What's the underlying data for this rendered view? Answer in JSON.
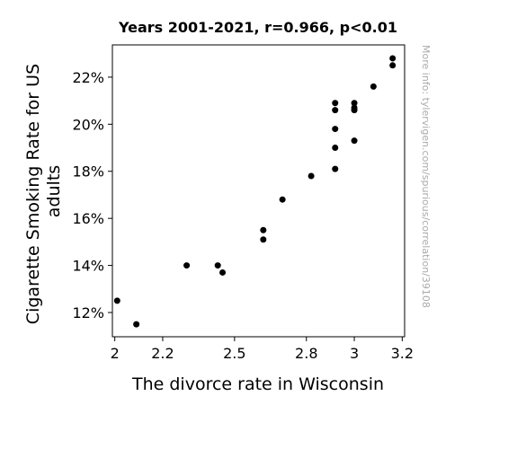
{
  "chart_data": {
    "type": "scatter",
    "title": "Years 2001-2021, r=0.966, p<0.01",
    "xlabel": "The divorce rate in Wisconsin",
    "ylabel_lines": [
      "Cigarette Smoking Rate for US",
      "adults"
    ],
    "xlim": [
      1.99,
      3.21
    ],
    "ylim": [
      10.97,
      23.37
    ],
    "x_ticks": [
      2,
      2.2,
      2.5,
      2.8,
      3,
      3.2
    ],
    "x_tick_labels": [
      "2",
      "2.2",
      "2.5",
      "2.8",
      "3",
      "3.2"
    ],
    "y_ticks": [
      12,
      14,
      16,
      18,
      20,
      22
    ],
    "y_tick_labels": [
      "12%",
      "14%",
      "16%",
      "18%",
      "20%",
      "22%"
    ],
    "grid": false,
    "marker_color": "#000000",
    "points": [
      {
        "x": 2.01,
        "y": 12.5
      },
      {
        "x": 2.09,
        "y": 11.5
      },
      {
        "x": 2.3,
        "y": 14.0
      },
      {
        "x": 2.43,
        "y": 14.0
      },
      {
        "x": 2.45,
        "y": 13.7
      },
      {
        "x": 2.62,
        "y": 15.5
      },
      {
        "x": 2.62,
        "y": 15.1
      },
      {
        "x": 2.7,
        "y": 16.8
      },
      {
        "x": 2.82,
        "y": 17.8
      },
      {
        "x": 2.92,
        "y": 18.1
      },
      {
        "x": 2.92,
        "y": 19.0
      },
      {
        "x": 2.92,
        "y": 19.8
      },
      {
        "x": 2.92,
        "y": 20.6
      },
      {
        "x": 2.92,
        "y": 20.9
      },
      {
        "x": 3.0,
        "y": 19.3
      },
      {
        "x": 3.0,
        "y": 20.6
      },
      {
        "x": 3.0,
        "y": 20.7
      },
      {
        "x": 3.0,
        "y": 20.9
      },
      {
        "x": 3.08,
        "y": 21.6
      },
      {
        "x": 3.16,
        "y": 22.5
      },
      {
        "x": 3.16,
        "y": 22.8
      }
    ]
  },
  "watermark": "More info: tylervigen.com/spurious/correlation/39108"
}
